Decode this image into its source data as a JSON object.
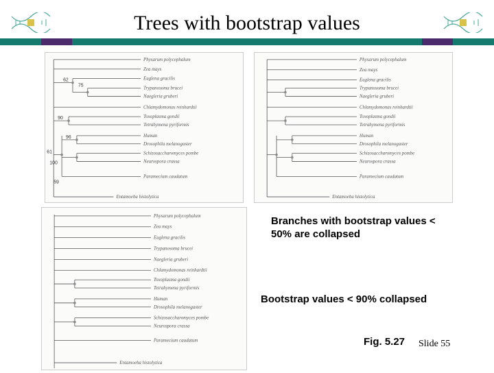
{
  "title": "Trees with bootstrap values",
  "hr_colors": [
    "#157a6e",
    "#4a2a6a",
    "#157a6e",
    "#4a2a6a",
    "#157a6e"
  ],
  "hr_widths": [
    60,
    45,
    510,
    45,
    60
  ],
  "taxa": [
    "Physarum polycephalum",
    "Zea mays",
    "Euglena gracilis",
    "Trypanosoma brucei",
    "Naegleria gruberi",
    "Chlamydomonas reinhardtii",
    "Toxoplasma gondii",
    "Tetrahymena pyriformis",
    "Human",
    "Drosophila melanogaster",
    "Schizosaccharomyces pombe",
    "Neurospora crassa",
    "Paramecium caudatum",
    "Entamoeba histolytica"
  ],
  "tree_a": {
    "bootstrap": {
      "n1": "75",
      "n2": "62",
      "n3": "90",
      "n4": "61",
      "n5": "96",
      "n6": "100",
      "n7": "59"
    },
    "branch_color": "#555555",
    "bg": "#fbfbfa"
  },
  "tree_b": {
    "branch_color": "#555555",
    "bg": "#fbfbfa"
  },
  "tree_c": {
    "branch_color": "#555555",
    "bg": "#fbfbfa"
  },
  "caption_b": "Branches with bootstrap values < 50% are collapsed",
  "caption_c": "Bootstrap values < 90% collapsed",
  "figure_label": "Fig. 5.27",
  "slide_number": "Slide 55",
  "dna_stroke": "#4aa89a",
  "dna_fill": "#d9c24a"
}
